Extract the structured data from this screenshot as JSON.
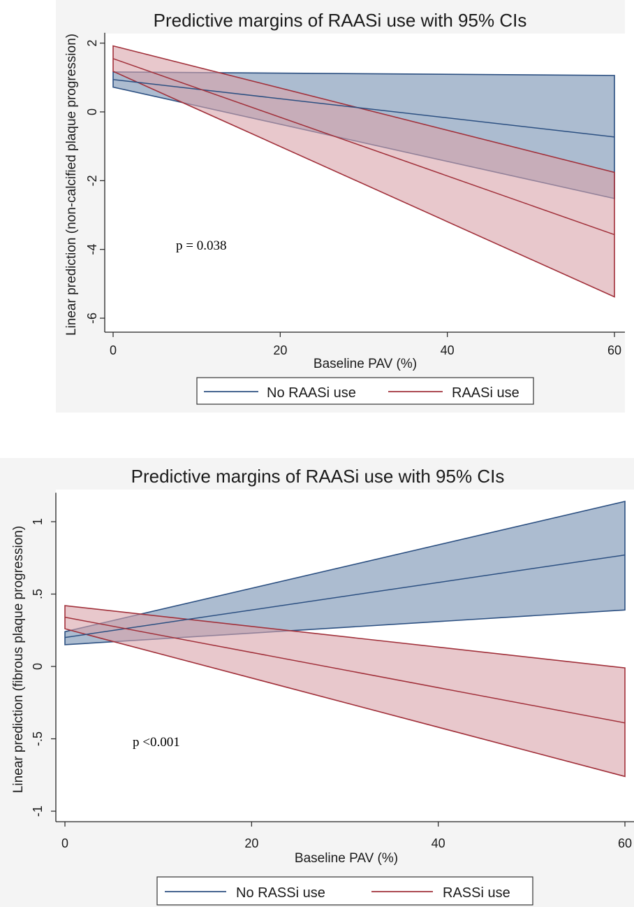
{
  "colors": {
    "no_raasi_line": "#2b4f81",
    "no_raasi_fill": "#9db0c8",
    "raasi_line": "#a1303a",
    "raasi_fill": "#d9a4aa",
    "overlap_fill": "#8a8fa6"
  },
  "chart_data": [
    {
      "type": "line",
      "title": "Predictive margins of RAASi use with 95% CIs",
      "xlabel": "Baseline PAV (%)",
      "ylabel": "Linear prediction (non-calcified plaque progression)",
      "xlim": [
        0,
        60
      ],
      "ylim": [
        -6.3,
        2.3
      ],
      "x_ticks": [
        0,
        20,
        40,
        60
      ],
      "x_tick_labels": [
        "0",
        "20",
        "40",
        "60"
      ],
      "y_ticks": [
        2,
        0,
        -2,
        -4,
        -6
      ],
      "y_tick_labels": [
        "2",
        "0",
        "-2",
        "-4",
        "-6"
      ],
      "annotation": "p = 0.038",
      "legend": [
        "No RAASi use",
        "RAASi use"
      ],
      "legend_placement": "bottom",
      "series": [
        {
          "name": "No RAASi use",
          "x": [
            0,
            60
          ],
          "y": [
            0.94,
            -0.73
          ],
          "ci_low": [
            0.72,
            -2.52
          ],
          "ci_high": [
            1.16,
            1.06
          ]
        },
        {
          "name": "RAASi use",
          "x": [
            0,
            60
          ],
          "y": [
            1.55,
            -3.57
          ],
          "ci_low": [
            1.18,
            -5.38
          ],
          "ci_high": [
            1.92,
            -1.76
          ]
        }
      ]
    },
    {
      "type": "line",
      "title": "Predictive margins of RAASi use with 95% CIs",
      "xlabel": "Baseline PAV (%)",
      "ylabel": "Linear prediction (fibrous plaque progression)",
      "xlim": [
        0,
        60
      ],
      "ylim": [
        -1.1,
        1.2
      ],
      "x_ticks": [
        0,
        20,
        40,
        60
      ],
      "x_tick_labels": [
        "0",
        "20",
        "40",
        "60"
      ],
      "y_ticks": [
        1,
        0.5,
        0,
        -0.5,
        -1
      ],
      "y_tick_labels": [
        "1",
        ".5",
        "0",
        "-.5",
        "-1"
      ],
      "annotation": "p <0.001",
      "legend": [
        "No RASSi use",
        "RASSi use"
      ],
      "legend_placement": "bottom",
      "series": [
        {
          "name": "No RASSi use",
          "x": [
            0,
            60
          ],
          "y": [
            0.2,
            0.77
          ],
          "ci_low": [
            0.15,
            0.39
          ],
          "ci_high": [
            0.24,
            1.14
          ]
        },
        {
          "name": "RASSi use",
          "x": [
            0,
            60
          ],
          "y": [
            0.34,
            -0.39
          ],
          "ci_low": [
            0.26,
            -0.76
          ],
          "ci_high": [
            0.42,
            -0.01
          ]
        }
      ]
    }
  ]
}
